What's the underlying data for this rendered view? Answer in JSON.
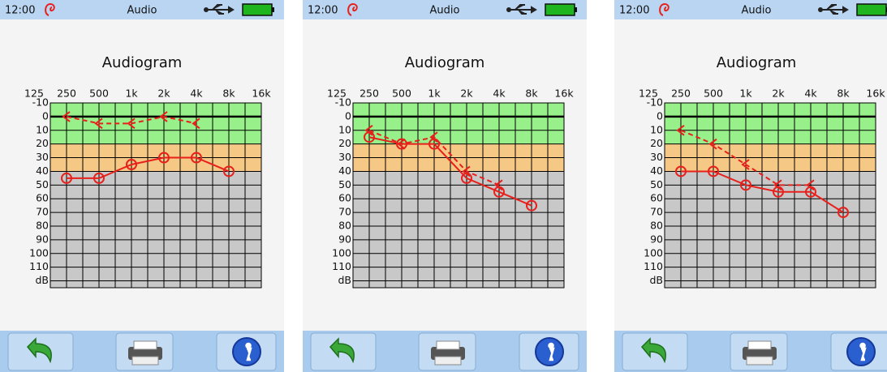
{
  "screens": [
    {
      "status": {
        "time": "12:00",
        "title": "Audio"
      },
      "chart": {
        "type": "line",
        "title": "Audiogram",
        "log_x": true,
        "x": [
          250,
          500,
          1000,
          2000,
          4000,
          8000
        ],
        "xlim": [
          176.8,
          16000
        ],
        "xticks": [
          125,
          250,
          500,
          {
            "value": 1000,
            "label": "1k"
          },
          {
            "value": 2000,
            "label": "2k"
          },
          {
            "value": 4000,
            "label": "4k"
          },
          {
            "value": 8000,
            "label": "8k"
          },
          {
            "value": 16000,
            "label": "16k"
          }
        ],
        "ylim": [
          -10,
          125
        ],
        "yticks": [
          -10,
          0,
          10,
          20,
          30,
          40,
          50,
          60,
          70,
          80,
          90,
          100,
          110,
          {
            "value": 120,
            "label": "dB"
          }
        ],
        "bands": [
          {
            "from": -10,
            "to": 20,
            "color": "#98f08a"
          },
          {
            "from": 20,
            "to": 40,
            "color": "#f5c985"
          },
          {
            "from": 40,
            "to": 125,
            "color": "#c8c8c8"
          }
        ],
        "series": [
          {
            "color": "#e8201c",
            "style": "solid",
            "marker": "circle",
            "values": [
              45,
              45,
              35,
              30,
              30,
              40
            ]
          },
          {
            "color": "#e8201c",
            "style": "dashed",
            "marker": "chevron",
            "values": [
              0,
              5,
              5,
              0,
              5,
              null
            ]
          }
        ]
      }
    },
    {
      "status": {
        "time": "12:00",
        "title": "Audio"
      },
      "chart": {
        "type": "line",
        "title": "Audiogram",
        "log_x": true,
        "x": [
          250,
          500,
          1000,
          2000,
          4000,
          8000
        ],
        "xlim": [
          176.8,
          16000
        ],
        "xticks": [
          125,
          250,
          500,
          {
            "value": 1000,
            "label": "1k"
          },
          {
            "value": 2000,
            "label": "2k"
          },
          {
            "value": 4000,
            "label": "4k"
          },
          {
            "value": 8000,
            "label": "8k"
          },
          {
            "value": 16000,
            "label": "16k"
          }
        ],
        "ylim": [
          -10,
          125
        ],
        "yticks": [
          -10,
          0,
          10,
          20,
          30,
          40,
          50,
          60,
          70,
          80,
          90,
          100,
          110,
          {
            "value": 120,
            "label": "dB"
          }
        ],
        "bands": [
          {
            "from": -10,
            "to": 20,
            "color": "#98f08a"
          },
          {
            "from": 20,
            "to": 40,
            "color": "#f5c985"
          },
          {
            "from": 40,
            "to": 125,
            "color": "#c8c8c8"
          }
        ],
        "series": [
          {
            "color": "#e8201c",
            "style": "solid",
            "marker": "circle",
            "values": [
              15,
              20,
              20,
              45,
              55,
              65
            ]
          },
          {
            "color": "#e8201c",
            "style": "dashed",
            "marker": "chevron",
            "values": [
              10,
              20,
              15,
              40,
              50,
              null
            ]
          }
        ]
      }
    },
    {
      "status": {
        "time": "12:00",
        "title": "Audio"
      },
      "chart": {
        "type": "line",
        "title": "Audiogram",
        "log_x": true,
        "x": [
          250,
          500,
          1000,
          2000,
          4000,
          8000
        ],
        "xlim": [
          176.8,
          16000
        ],
        "xticks": [
          125,
          250,
          500,
          {
            "value": 1000,
            "label": "1k"
          },
          {
            "value": 2000,
            "label": "2k"
          },
          {
            "value": 4000,
            "label": "4k"
          },
          {
            "value": 8000,
            "label": "8k"
          },
          {
            "value": 16000,
            "label": "16k"
          }
        ],
        "ylim": [
          -10,
          125
        ],
        "yticks": [
          -10,
          0,
          10,
          20,
          30,
          40,
          50,
          60,
          70,
          80,
          90,
          100,
          110,
          {
            "value": 120,
            "label": "dB"
          }
        ],
        "bands": [
          {
            "from": -10,
            "to": 20,
            "color": "#98f08a"
          },
          {
            "from": 20,
            "to": 40,
            "color": "#f5c985"
          },
          {
            "from": 40,
            "to": 125,
            "color": "#c8c8c8"
          }
        ],
        "series": [
          {
            "color": "#e8201c",
            "style": "solid",
            "marker": "circle",
            "values": [
              40,
              40,
              50,
              55,
              55,
              70
            ]
          },
          {
            "color": "#e8201c",
            "style": "dashed",
            "marker": "chevron",
            "values": [
              10,
              20,
              35,
              50,
              50,
              null
            ]
          }
        ]
      }
    }
  ]
}
